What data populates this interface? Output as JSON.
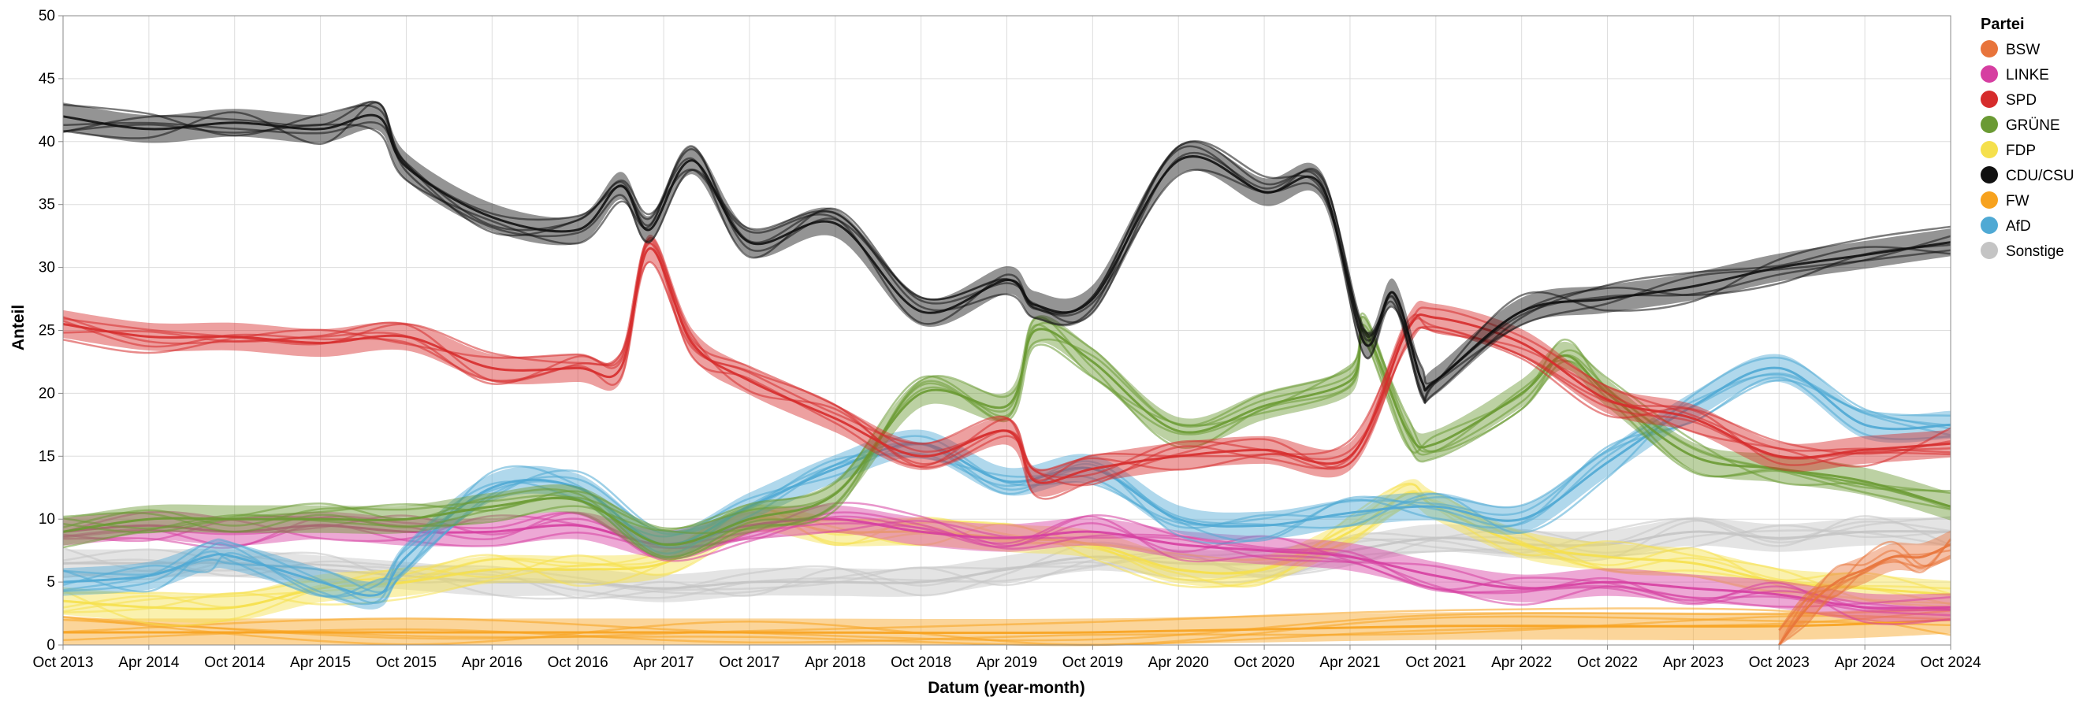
{
  "chart_data": {
    "type": "line",
    "xlabel": "Datum (year-month)",
    "ylabel": "Anteil",
    "x_range": [
      "2013-10",
      "2024-10"
    ],
    "ylim": [
      0,
      50
    ],
    "y_ticks": [
      0,
      5,
      10,
      15,
      20,
      25,
      30,
      35,
      40,
      45,
      50
    ],
    "x_ticks": [
      {
        "date": "2013-10",
        "label": "Oct 2013"
      },
      {
        "date": "2014-04",
        "label": "Apr 2014"
      },
      {
        "date": "2014-10",
        "label": "Oct 2014"
      },
      {
        "date": "2015-04",
        "label": "Apr 2015"
      },
      {
        "date": "2015-10",
        "label": "Oct 2015"
      },
      {
        "date": "2016-04",
        "label": "Apr 2016"
      },
      {
        "date": "2016-10",
        "label": "Oct 2016"
      },
      {
        "date": "2017-04",
        "label": "Apr 2017"
      },
      {
        "date": "2017-10",
        "label": "Oct 2017"
      },
      {
        "date": "2018-04",
        "label": "Apr 2018"
      },
      {
        "date": "2018-10",
        "label": "Oct 2018"
      },
      {
        "date": "2019-04",
        "label": "Apr 2019"
      },
      {
        "date": "2019-10",
        "label": "Oct 2019"
      },
      {
        "date": "2020-04",
        "label": "Apr 2020"
      },
      {
        "date": "2020-10",
        "label": "Oct 2020"
      },
      {
        "date": "2021-04",
        "label": "Apr 2021"
      },
      {
        "date": "2021-10",
        "label": "Oct 2021"
      },
      {
        "date": "2022-04",
        "label": "Apr 2022"
      },
      {
        "date": "2022-10",
        "label": "Oct 2022"
      },
      {
        "date": "2023-04",
        "label": "Apr 2023"
      },
      {
        "date": "2023-10",
        "label": "Oct 2023"
      },
      {
        "date": "2024-04",
        "label": "Apr 2024"
      },
      {
        "date": "2024-10",
        "label": "Oct 2024"
      }
    ],
    "grid": true,
    "legend": {
      "title": "Partei",
      "placement": "right"
    },
    "series": [
      {
        "name": "BSW",
        "color": "#e8743b",
        "points": [
          [
            "2023-10",
            0
          ],
          [
            "2023-12",
            3
          ],
          [
            "2024-02",
            5
          ],
          [
            "2024-04",
            6
          ],
          [
            "2024-06",
            7
          ],
          [
            "2024-08",
            7
          ],
          [
            "2024-10",
            8
          ]
        ]
      },
      {
        "name": "LINKE",
        "color": "#d63ea1",
        "points": [
          [
            "2013-10",
            9
          ],
          [
            "2014-04",
            9.5
          ],
          [
            "2014-10",
            9
          ],
          [
            "2015-04",
            9.5
          ],
          [
            "2015-10",
            9
          ],
          [
            "2016-04",
            9
          ],
          [
            "2016-10",
            9.5
          ],
          [
            "2017-04",
            8
          ],
          [
            "2017-10",
            9.5
          ],
          [
            "2018-04",
            10
          ],
          [
            "2018-10",
            9
          ],
          [
            "2019-04",
            8.5
          ],
          [
            "2019-10",
            9
          ],
          [
            "2020-04",
            8
          ],
          [
            "2020-10",
            7.5
          ],
          [
            "2021-04",
            7
          ],
          [
            "2021-10",
            5.5
          ],
          [
            "2022-04",
            4.5
          ],
          [
            "2022-10",
            5
          ],
          [
            "2023-04",
            4.5
          ],
          [
            "2023-10",
            4
          ],
          [
            "2024-04",
            3
          ],
          [
            "2024-10",
            3
          ]
        ]
      },
      {
        "name": "SPD",
        "color": "#d62c2c",
        "points": [
          [
            "2013-10",
            25.5
          ],
          [
            "2014-04",
            24.5
          ],
          [
            "2014-10",
            24.5
          ],
          [
            "2015-04",
            24
          ],
          [
            "2015-10",
            24.5
          ],
          [
            "2016-04",
            22
          ],
          [
            "2016-10",
            22
          ],
          [
            "2017-01",
            22
          ],
          [
            "2017-03",
            31.5
          ],
          [
            "2017-06",
            24
          ],
          [
            "2017-10",
            21
          ],
          [
            "2018-04",
            18
          ],
          [
            "2018-10",
            15
          ],
          [
            "2019-04",
            17
          ],
          [
            "2019-06",
            13
          ],
          [
            "2019-10",
            14
          ],
          [
            "2020-04",
            15
          ],
          [
            "2020-10",
            15.5
          ],
          [
            "2021-04",
            15
          ],
          [
            "2021-08",
            25
          ],
          [
            "2021-10",
            26
          ],
          [
            "2022-04",
            24
          ],
          [
            "2022-10",
            19.5
          ],
          [
            "2023-04",
            18
          ],
          [
            "2023-10",
            15
          ],
          [
            "2024-04",
            15.5
          ],
          [
            "2024-10",
            16
          ]
        ]
      },
      {
        "name": "GRÜNE",
        "color": "#6a9a33",
        "points": [
          [
            "2013-10",
            9
          ],
          [
            "2014-04",
            10
          ],
          [
            "2014-10",
            10
          ],
          [
            "2015-04",
            10
          ],
          [
            "2015-10",
            10
          ],
          [
            "2016-04",
            11
          ],
          [
            "2016-10",
            11.5
          ],
          [
            "2017-04",
            8
          ],
          [
            "2017-10",
            10
          ],
          [
            "2018-04",
            12
          ],
          [
            "2018-10",
            20
          ],
          [
            "2019-04",
            19
          ],
          [
            "2019-06",
            25
          ],
          [
            "2019-10",
            22.5
          ],
          [
            "2020-04",
            17
          ],
          [
            "2020-10",
            19
          ],
          [
            "2021-04",
            21
          ],
          [
            "2021-05",
            25
          ],
          [
            "2021-08",
            17
          ],
          [
            "2021-10",
            16
          ],
          [
            "2022-04",
            20
          ],
          [
            "2022-07",
            23
          ],
          [
            "2022-10",
            20
          ],
          [
            "2023-04",
            15
          ],
          [
            "2023-10",
            14
          ],
          [
            "2024-04",
            13
          ],
          [
            "2024-10",
            11
          ]
        ]
      },
      {
        "name": "FDP",
        "color": "#f5e04c",
        "points": [
          [
            "2013-10",
            3.5
          ],
          [
            "2014-04",
            3
          ],
          [
            "2014-10",
            3
          ],
          [
            "2015-04",
            4.5
          ],
          [
            "2015-10",
            5
          ],
          [
            "2016-04",
            6
          ],
          [
            "2016-10",
            6
          ],
          [
            "2017-04",
            6.5
          ],
          [
            "2017-10",
            10
          ],
          [
            "2018-04",
            9
          ],
          [
            "2018-10",
            9
          ],
          [
            "2019-04",
            8.5
          ],
          [
            "2019-10",
            8
          ],
          [
            "2020-04",
            6
          ],
          [
            "2020-10",
            6
          ],
          [
            "2021-04",
            9
          ],
          [
            "2021-08",
            12
          ],
          [
            "2021-10",
            11
          ],
          [
            "2022-04",
            8
          ],
          [
            "2022-10",
            7
          ],
          [
            "2023-04",
            6.5
          ],
          [
            "2023-10",
            5
          ],
          [
            "2024-04",
            4.5
          ],
          [
            "2024-10",
            4
          ]
        ]
      },
      {
        "name": "CDU/CSU",
        "color": "#111111",
        "points": [
          [
            "2013-10",
            42
          ],
          [
            "2014-04",
            41
          ],
          [
            "2014-10",
            41.5
          ],
          [
            "2015-04",
            41
          ],
          [
            "2015-08",
            42
          ],
          [
            "2015-10",
            38
          ],
          [
            "2016-04",
            34
          ],
          [
            "2016-10",
            33
          ],
          [
            "2017-01",
            36.5
          ],
          [
            "2017-03",
            33
          ],
          [
            "2017-06",
            38.5
          ],
          [
            "2017-10",
            32
          ],
          [
            "2018-04",
            33.5
          ],
          [
            "2018-10",
            26.5
          ],
          [
            "2019-04",
            29
          ],
          [
            "2019-06",
            27
          ],
          [
            "2019-10",
            27.5
          ],
          [
            "2020-04",
            38.5
          ],
          [
            "2020-10",
            36
          ],
          [
            "2021-02",
            36.5
          ],
          [
            "2021-05",
            24
          ],
          [
            "2021-07",
            28
          ],
          [
            "2021-09",
            21
          ],
          [
            "2021-10",
            21
          ],
          [
            "2022-04",
            26.5
          ],
          [
            "2022-10",
            27.5
          ],
          [
            "2023-04",
            28.5
          ],
          [
            "2023-10",
            30
          ],
          [
            "2024-04",
            31
          ],
          [
            "2024-10",
            32
          ]
        ]
      },
      {
        "name": "FW",
        "color": "#f7a21e",
        "points": [
          [
            "2013-10",
            1
          ],
          [
            "2015-10",
            1
          ],
          [
            "2017-10",
            1
          ],
          [
            "2019-10",
            1
          ],
          [
            "2021-10",
            1.5
          ],
          [
            "2023-10",
            1.5
          ],
          [
            "2024-10",
            2
          ]
        ]
      },
      {
        "name": "AfD",
        "color": "#4fa9d4",
        "points": [
          [
            "2013-10",
            5
          ],
          [
            "2014-04",
            5.5
          ],
          [
            "2014-08",
            7
          ],
          [
            "2014-10",
            7
          ],
          [
            "2015-04",
            5
          ],
          [
            "2015-08",
            4
          ],
          [
            "2015-10",
            7
          ],
          [
            "2016-04",
            12.5
          ],
          [
            "2016-10",
            12.5
          ],
          [
            "2017-04",
            8
          ],
          [
            "2017-10",
            11
          ],
          [
            "2018-04",
            14
          ],
          [
            "2018-10",
            16
          ],
          [
            "2019-04",
            13
          ],
          [
            "2019-10",
            14
          ],
          [
            "2020-04",
            10
          ],
          [
            "2020-10",
            9.5
          ],
          [
            "2021-04",
            10.5
          ],
          [
            "2021-10",
            11
          ],
          [
            "2022-04",
            10
          ],
          [
            "2022-10",
            14.5
          ],
          [
            "2023-04",
            19
          ],
          [
            "2023-10",
            22
          ],
          [
            "2024-04",
            17.5
          ],
          [
            "2024-10",
            17.5
          ]
        ]
      },
      {
        "name": "Sonstige",
        "color": "#c4c4c4",
        "points": [
          [
            "2013-10",
            6.5
          ],
          [
            "2014-04",
            6.5
          ],
          [
            "2014-10",
            6.5
          ],
          [
            "2015-04",
            6
          ],
          [
            "2015-10",
            5.5
          ],
          [
            "2016-04",
            5
          ],
          [
            "2016-10",
            5
          ],
          [
            "2017-04",
            4.5
          ],
          [
            "2017-10",
            5
          ],
          [
            "2018-04",
            5
          ],
          [
            "2018-10",
            5
          ],
          [
            "2019-04",
            6
          ],
          [
            "2019-10",
            7
          ],
          [
            "2020-04",
            6.5
          ],
          [
            "2020-10",
            6.5
          ],
          [
            "2021-04",
            7.5
          ],
          [
            "2021-10",
            8.5
          ],
          [
            "2022-04",
            8
          ],
          [
            "2022-10",
            8
          ],
          [
            "2023-04",
            9
          ],
          [
            "2023-10",
            8.5
          ],
          [
            "2024-04",
            9
          ],
          [
            "2024-10",
            9
          ]
        ]
      }
    ]
  }
}
